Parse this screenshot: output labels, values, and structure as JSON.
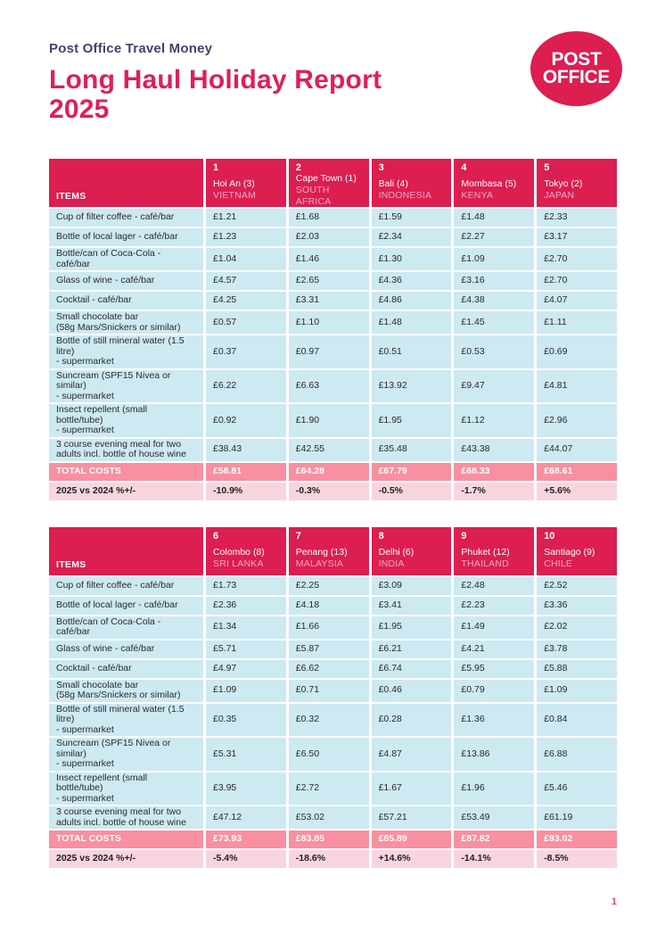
{
  "header": {
    "eyebrow": "Post Office Travel Money",
    "title_line1": "Long Haul Holiday Report",
    "title_line2": "2025",
    "logo_line1": "POST",
    "logo_line2": "OFFICE"
  },
  "colors": {
    "crimson": "#DC1E50",
    "title_pink": "#E01E5A",
    "navy": "#454070",
    "row_blue": "#CDE9F1",
    "total_salmon": "#F98FA0",
    "change_pink": "#F8D5DE",
    "header_country_text": "#F3A8BF",
    "page_number_pink": "#E8417A"
  },
  "tables": [
    {
      "items_header": "ITEMS",
      "columns": [
        {
          "rank": "1",
          "city": "Hoi An (3)",
          "country": "VIETNAM"
        },
        {
          "rank": "2",
          "city": "Cape Town (1)",
          "country": "SOUTH AFRICA"
        },
        {
          "rank": "3",
          "city": "Bali (4)",
          "country": "INDONESIA"
        },
        {
          "rank": "4",
          "city": "Mombasa (5)",
          "country": "KENYA"
        },
        {
          "rank": "5",
          "city": "Tokyo (2)",
          "country": "JAPAN"
        }
      ],
      "rows": [
        {
          "label": "Cup of filter coffee - café/bar",
          "values": [
            "£1.21",
            "£1.68",
            "£1.59",
            "£1.48",
            "£2.33"
          ]
        },
        {
          "label": "Bottle of local lager - café/bar",
          "values": [
            "£1.23",
            "£2.03",
            "£2.34",
            "£2.27",
            "£3.17"
          ]
        },
        {
          "label": "Bottle/can of Coca-Cola - café/bar",
          "values": [
            "£1.04",
            "£1.46",
            "£1.30",
            "£1.09",
            "£2.70"
          ]
        },
        {
          "label": "Glass of wine - café/bar",
          "values": [
            "£4.57",
            "£2.65",
            "£4.36",
            "£3.16",
            "£2.70"
          ]
        },
        {
          "label": "Cocktail - café/bar",
          "values": [
            "£4.25",
            "£3.31",
            "£4.86",
            "£4.38",
            "£4.07"
          ]
        },
        {
          "label": "Small chocolate bar\n(58g Mars/Snickers or similar)",
          "values": [
            "£0.57",
            "£1.10",
            "£1.48",
            "£1.45",
            "£1.11"
          ]
        },
        {
          "label": "Bottle of still mineral water (1.5 litre)\n- supermarket",
          "values": [
            "£0.37",
            "£0.97",
            "£0.51",
            "£0.53",
            "£0.69"
          ]
        },
        {
          "label": "Suncream (SPF15 Nivea or similar)\n- supermarket",
          "values": [
            "£6.22",
            "£6.63",
            "£13.92",
            "£9.47",
            "£4.81"
          ]
        },
        {
          "label": "Insect repellent (small bottle/tube)\n- supermarket",
          "values": [
            "£0.92",
            "£1.90",
            "£1.95",
            "£1.12",
            "£2.96"
          ]
        },
        {
          "label": "3 course evening meal for two\nadults incl. bottle of house wine",
          "values": [
            "£38.43",
            "£42.55",
            "£35.48",
            "£43.38",
            "£44.07"
          ]
        }
      ],
      "total_label": "TOTAL COSTS",
      "totals": [
        "£58.81",
        "£64.28",
        "£67.79",
        "£68.33",
        "£68.61"
      ],
      "change_label": "2025 vs 2024 %+/-",
      "changes": [
        "-10.9%",
        "-0.3%",
        "-0.5%",
        "-1.7%",
        "+5.6%"
      ]
    },
    {
      "items_header": "ITEMS",
      "columns": [
        {
          "rank": "6",
          "city": "Colombo (8)",
          "country": "SRI LANKA"
        },
        {
          "rank": "7",
          "city": "Penang (13)",
          "country": "MALAYSIA"
        },
        {
          "rank": "8",
          "city": "Delhi (6)",
          "country": "INDIA"
        },
        {
          "rank": "9",
          "city": "Phuket (12)",
          "country": "THAILAND"
        },
        {
          "rank": "10",
          "city": "Santiago (9)",
          "country": "CHILE"
        }
      ],
      "rows": [
        {
          "label": "Cup of filter coffee - café/bar",
          "values": [
            "£1.73",
            "£2.25",
            "£3.09",
            "£2.48",
            "£2.52"
          ]
        },
        {
          "label": "Bottle of local lager - café/bar",
          "values": [
            "£2.36",
            "£4.18",
            "£3.41",
            "£2.23",
            "£3.36"
          ]
        },
        {
          "label": "Bottle/can of Coca-Cola - café/bar",
          "values": [
            "£1.34",
            "£1.66",
            "£1.95",
            "£1.49",
            "£2.02"
          ]
        },
        {
          "label": "Glass of wine - café/bar",
          "values": [
            "£5.71",
            "£5.87",
            "£6.21",
            "£4.21",
            "£3.78"
          ]
        },
        {
          "label": "Cocktail - café/bar",
          "values": [
            "£4.97",
            "£6.62",
            "£6.74",
            "£5.95",
            "£5.88"
          ]
        },
        {
          "label": "Small chocolate bar\n(58g Mars/Snickers or similar)",
          "values": [
            "£1.09",
            "£0.71",
            "£0.46",
            "£0.79",
            "£1.09"
          ]
        },
        {
          "label": "Bottle of still mineral water (1.5 litre)\n- supermarket",
          "values": [
            "£0.35",
            "£0.32",
            "£0.28",
            "£1.36",
            "£0.84"
          ]
        },
        {
          "label": "Suncream (SPF15 Nivea or similar)\n- supermarket",
          "values": [
            "£5.31",
            "£6.50",
            "£4.87",
            "£13.86",
            "£6.88"
          ]
        },
        {
          "label": "Insect repellent (small bottle/tube)\n- supermarket",
          "values": [
            "£3.95",
            "£2.72",
            "£1.67",
            "£1.96",
            "£5.46"
          ]
        },
        {
          "label": "3 course evening meal for two\nadults incl. bottle of house wine",
          "values": [
            "£47.12",
            "£53.02",
            "£57.21",
            "£53.49",
            "£61.19"
          ]
        }
      ],
      "total_label": "TOTAL COSTS",
      "totals": [
        "£73.93",
        "£83.85",
        "£85.89",
        "£87.82",
        "£93.02"
      ],
      "change_label": "2025 vs 2024 %+/-",
      "changes": [
        "-5.4%",
        "-18.6%",
        "+14.6%",
        "-14.1%",
        "-8.5%"
      ]
    }
  ],
  "footer": {
    "page_number": "1"
  }
}
